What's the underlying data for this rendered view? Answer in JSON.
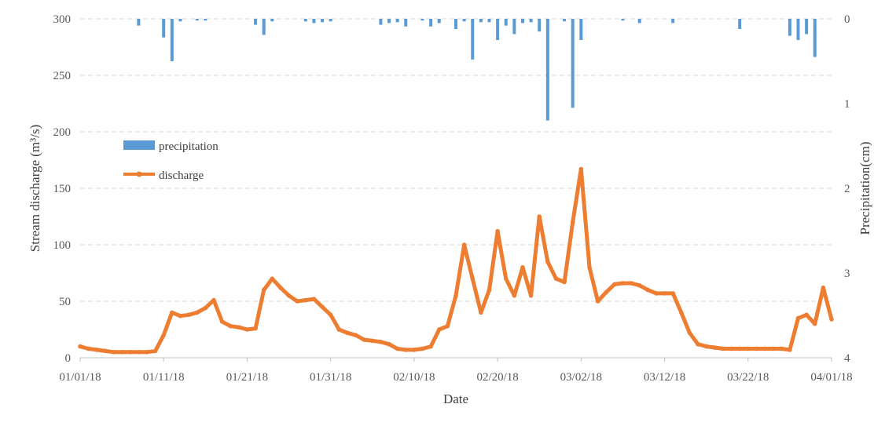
{
  "chart_data": {
    "type": "line",
    "xlabel": "Date",
    "ylabel": "Stream discharge (m³/s)",
    "y2label": "Precipitation(cm)",
    "x_ticks": [
      "01/01/18",
      "01/11/18",
      "01/21/18",
      "01/31/18",
      "02/10/18",
      "02/20/18",
      "03/02/18",
      "03/12/18",
      "03/22/18",
      "04/01/18"
    ],
    "x_range": [
      "2018-01-01",
      "2018-04-01"
    ],
    "ylim": [
      0,
      300
    ],
    "y_ticks": [
      "0",
      "50",
      "100",
      "150",
      "200",
      "250",
      "300"
    ],
    "y2lim": [
      0,
      4
    ],
    "y2_inverted": true,
    "y2_ticks": [
      "0",
      "1",
      "2",
      "3",
      "4"
    ],
    "grid": "horizontal dashed",
    "legend": [
      "precipitation",
      "discharge"
    ],
    "legend_position": "center-left",
    "colors": {
      "precipitation": "#5b9bd5",
      "discharge": "#ed7d31",
      "grid": "#d9d9d9"
    },
    "series": [
      {
        "name": "discharge",
        "axis": "left",
        "x": [
          "2018-01-01",
          "2018-01-02",
          "2018-01-03",
          "2018-01-04",
          "2018-01-05",
          "2018-01-06",
          "2018-01-07",
          "2018-01-08",
          "2018-01-09",
          "2018-01-10",
          "2018-01-11",
          "2018-01-12",
          "2018-01-13",
          "2018-01-14",
          "2018-01-15",
          "2018-01-16",
          "2018-01-17",
          "2018-01-18",
          "2018-01-19",
          "2018-01-20",
          "2018-01-21",
          "2018-01-22",
          "2018-01-23",
          "2018-01-24",
          "2018-01-25",
          "2018-01-26",
          "2018-01-27",
          "2018-01-28",
          "2018-01-29",
          "2018-01-30",
          "2018-01-31",
          "2018-02-01",
          "2018-02-02",
          "2018-02-03",
          "2018-02-04",
          "2018-02-05",
          "2018-02-06",
          "2018-02-07",
          "2018-02-08",
          "2018-02-09",
          "2018-02-10",
          "2018-02-11",
          "2018-02-12",
          "2018-02-13",
          "2018-02-14",
          "2018-02-15",
          "2018-02-16",
          "2018-02-17",
          "2018-02-18",
          "2018-02-19",
          "2018-02-20",
          "2018-02-21",
          "2018-02-22",
          "2018-02-23",
          "2018-02-24",
          "2018-02-25",
          "2018-02-26",
          "2018-02-27",
          "2018-02-28",
          "2018-03-01",
          "2018-03-02",
          "2018-03-03",
          "2018-03-04",
          "2018-03-05",
          "2018-03-06",
          "2018-03-07",
          "2018-03-08",
          "2018-03-09",
          "2018-03-10",
          "2018-03-11",
          "2018-03-12",
          "2018-03-13",
          "2018-03-14",
          "2018-03-15",
          "2018-03-16",
          "2018-03-17",
          "2018-03-18",
          "2018-03-19",
          "2018-03-20",
          "2018-03-21",
          "2018-03-22",
          "2018-03-23",
          "2018-03-24",
          "2018-03-25",
          "2018-03-26",
          "2018-03-27",
          "2018-03-28",
          "2018-03-29",
          "2018-03-30",
          "2018-03-31",
          "2018-04-01"
        ],
        "values": [
          10,
          8,
          7,
          6,
          5,
          5,
          5,
          5,
          5,
          6,
          20,
          40,
          37,
          38,
          40,
          44,
          51,
          32,
          28,
          27,
          25,
          26,
          60,
          70,
          62,
          55,
          50,
          51,
          52,
          45,
          38,
          25,
          22,
          20,
          16,
          15,
          14,
          12,
          8,
          7,
          7,
          8,
          10,
          25,
          28,
          55,
          100,
          70,
          40,
          60,
          112,
          70,
          55,
          80,
          55,
          125,
          85,
          70,
          67,
          120,
          167,
          80,
          50,
          58,
          65,
          66,
          66,
          64,
          60,
          57,
          57,
          57,
          40,
          22,
          12,
          10,
          9,
          8,
          8,
          8,
          8,
          8,
          8,
          8,
          8,
          7,
          35,
          38,
          30,
          62,
          34
        ]
      },
      {
        "name": "precipitation",
        "axis": "right",
        "type": "bar",
        "x": [
          "2018-01-08",
          "2018-01-11",
          "2018-01-12",
          "2018-01-13",
          "2018-01-15",
          "2018-01-16",
          "2018-01-22",
          "2018-01-23",
          "2018-01-24",
          "2018-01-28",
          "2018-01-29",
          "2018-01-30",
          "2018-01-31",
          "2018-02-06",
          "2018-02-07",
          "2018-02-08",
          "2018-02-09",
          "2018-02-11",
          "2018-02-12",
          "2018-02-13",
          "2018-02-15",
          "2018-02-16",
          "2018-02-17",
          "2018-02-18",
          "2018-02-19",
          "2018-02-20",
          "2018-02-21",
          "2018-02-22",
          "2018-02-23",
          "2018-02-24",
          "2018-02-25",
          "2018-02-26",
          "2018-02-28",
          "2018-03-01",
          "2018-03-02",
          "2018-03-07",
          "2018-03-09",
          "2018-03-13",
          "2018-03-21",
          "2018-03-27",
          "2018-03-28",
          "2018-03-29",
          "2018-03-30"
        ],
        "values": [
          0.08,
          0.22,
          0.5,
          0.03,
          0.02,
          0.02,
          0.07,
          0.19,
          0.03,
          0.03,
          0.05,
          0.04,
          0.03,
          0.07,
          0.05,
          0.04,
          0.09,
          0.02,
          0.09,
          0.05,
          0.12,
          0.03,
          0.48,
          0.04,
          0.04,
          0.25,
          0.08,
          0.18,
          0.05,
          0.04,
          0.15,
          1.2,
          0.03,
          1.05,
          0.25,
          0.02,
          0.05,
          0.05,
          0.12,
          0.2,
          0.25,
          0.18,
          0.45
        ]
      }
    ]
  }
}
